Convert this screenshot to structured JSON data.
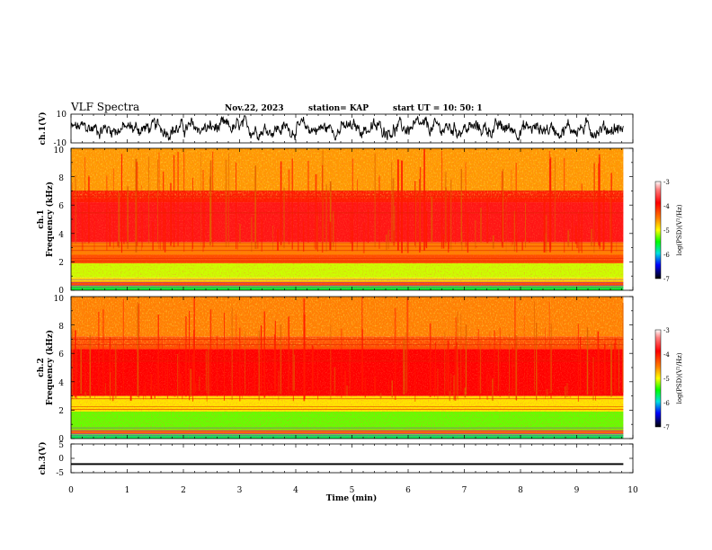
{
  "header": {
    "title": "VLF Spectra",
    "date": "Nov.22, 2023",
    "station": "station= KAP",
    "start": "start  UT  =    10: 50: 1"
  },
  "chart_data": [
    {
      "type": "line",
      "panel": "ch1-waveform",
      "ylabel": "ch.1(V)",
      "ylim": [
        -10,
        10
      ],
      "yticks": [
        "10",
        "-10"
      ],
      "xlim": [
        0,
        10
      ],
      "x_end": 9.83,
      "description_values": {
        "baseline_mean": 0.0,
        "amplitude_range": [
          -8,
          9
        ]
      },
      "color": "#000000"
    },
    {
      "type": "heatmap",
      "panel": "ch1-spectrogram",
      "ylabel": "Frequency  (kHz)",
      "ylabel2": "ch.1",
      "ylim": [
        0,
        10
      ],
      "yticks": [
        "0",
        "2",
        "4",
        "6",
        "8",
        "10"
      ],
      "xlim": [
        0,
        10
      ],
      "x_end": 9.83,
      "bands": [
        {
          "from": 0.0,
          "to": 0.3,
          "level": -5.6
        },
        {
          "from": 0.3,
          "to": 0.6,
          "level": -4.3
        },
        {
          "from": 0.6,
          "to": 0.9,
          "level": -4.9
        },
        {
          "from": 0.9,
          "to": 1.9,
          "level": -5.1
        },
        {
          "from": 1.9,
          "to": 2.5,
          "level": -4.3
        },
        {
          "from": 2.5,
          "to": 3.4,
          "level": -4.5
        },
        {
          "from": 3.4,
          "to": 6.2,
          "level": -3.9
        },
        {
          "from": 6.2,
          "to": 7.0,
          "level": -4.1
        },
        {
          "from": 7.0,
          "to": 10.0,
          "level": -4.6
        }
      ],
      "colorbar": {
        "label": "log(PSD)(V²/Hz)",
        "range": [
          -7,
          -3
        ],
        "ticks": [
          "-3",
          "-4",
          "-5",
          "-6",
          "-7"
        ]
      }
    },
    {
      "type": "heatmap",
      "panel": "ch2-spectrogram",
      "ylabel": "Frequency  (kHz)",
      "ylabel2": "ch.2",
      "ylim": [
        0,
        10
      ],
      "yticks": [
        "0",
        "2",
        "4",
        "6",
        "8",
        "10"
      ],
      "xlim": [
        0,
        10
      ],
      "x_end": 9.83,
      "bands": [
        {
          "from": 0.0,
          "to": 0.3,
          "level": -5.7
        },
        {
          "from": 0.3,
          "to": 0.6,
          "level": -4.4
        },
        {
          "from": 0.6,
          "to": 1.9,
          "level": -5.3
        },
        {
          "from": 1.9,
          "to": 3.0,
          "level": -4.9
        },
        {
          "from": 3.0,
          "to": 6.3,
          "level": -4.0
        },
        {
          "from": 6.3,
          "to": 7.2,
          "level": -4.3
        },
        {
          "from": 7.2,
          "to": 10.0,
          "level": -4.5
        }
      ],
      "colorbar": {
        "label": "log(PSD)(V²/Hz)",
        "range": [
          -7,
          -3
        ],
        "ticks": [
          "-3",
          "-4",
          "-5",
          "-6",
          "-7"
        ]
      }
    },
    {
      "type": "line",
      "panel": "ch3-waveform",
      "ylabel": "ch.3(V)",
      "ylim": [
        -5,
        5
      ],
      "yticks": [
        "5",
        "0",
        "-5"
      ],
      "xlim": [
        0,
        10
      ],
      "x_end": 9.83,
      "level": -2.0,
      "band_halfwidth": 0.3,
      "color": "#000000"
    }
  ],
  "xaxis": {
    "label": "Time  (min)",
    "ticks": [
      "0",
      "1",
      "2",
      "3",
      "4",
      "5",
      "6",
      "7",
      "8",
      "9",
      "10"
    ]
  }
}
